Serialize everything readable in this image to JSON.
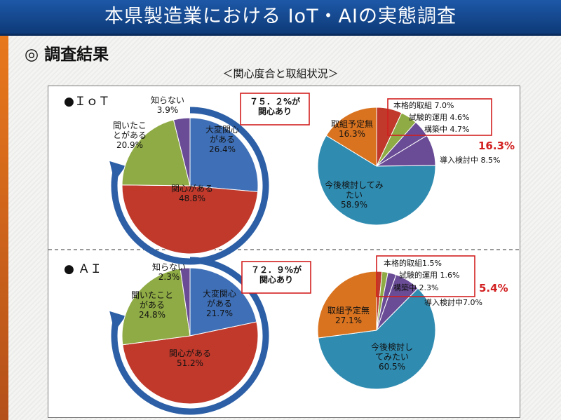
{
  "page": {
    "title": "本県製造業における IoT・AIの実態調査",
    "section_heading": "◎ 調査結果",
    "subtitle": "＜関心度合と取組状況＞"
  },
  "colors": {
    "blue": "#3f70b7",
    "red": "#c0392b",
    "green": "#8fab45",
    "purple": "#6a4c96",
    "teal": "#2f8bb0",
    "orange": "#d9731f",
    "arrow": "#2c5fa6",
    "highlight": "#d21f1f"
  },
  "chart_data": [
    {
      "type": "pie",
      "title": "●ＩｏＴ",
      "chart": "interest",
      "slices": [
        {
          "label": "大変関心\nがある",
          "value": 26.4,
          "display": "26.4%",
          "color": "blue"
        },
        {
          "label": "関心がある",
          "value": 48.8,
          "display": "48.8%",
          "color": "red"
        },
        {
          "label": "聞いたこ\nとがある",
          "value": 20.9,
          "display": "20.9%",
          "color": "green"
        },
        {
          "label": "知らない",
          "value": 3.9,
          "display": "3.9%",
          "color": "purple"
        }
      ],
      "callout": "７５．２%が\n関心あり"
    },
    {
      "type": "pie",
      "title": "",
      "chart": "initiative",
      "slices": [
        {
          "label": "本格的取組",
          "value": 7.0,
          "display": "7.0%",
          "color": "red"
        },
        {
          "label": "試験的運用",
          "value": 4.6,
          "display": "4.6%",
          "color": "green"
        },
        {
          "label": "構築中",
          "value": 4.7,
          "display": "4.7%",
          "color": "purple"
        },
        {
          "label": "導入検討中",
          "value": 8.5,
          "display": "8.5%",
          "color": "purple"
        },
        {
          "label": "今後検討してみ\nたい",
          "value": 58.9,
          "display": "58.9%",
          "color": "teal"
        },
        {
          "label": "取組予定無",
          "value": 16.3,
          "display": "16.3%",
          "color": "orange"
        }
      ],
      "highlight_total": "16.3%"
    },
    {
      "type": "pie",
      "title": "● ＡＩ",
      "chart": "interest",
      "slices": [
        {
          "label": "大変関心\nがある",
          "value": 21.7,
          "display": "21.7%",
          "color": "blue"
        },
        {
          "label": "関心がある",
          "value": 51.2,
          "display": "51.2%",
          "color": "red"
        },
        {
          "label": "聞いたこと\nがある",
          "value": 24.8,
          "display": "24.8%",
          "color": "green"
        },
        {
          "label": "知らない",
          "value": 2.3,
          "display": "2.3%",
          "color": "purple"
        }
      ],
      "callout": "７２．９%が\n関心あり"
    },
    {
      "type": "pie",
      "title": "",
      "chart": "initiative",
      "slices": [
        {
          "label": "本格的取組",
          "value": 1.5,
          "display": "1.5%",
          "color": "red"
        },
        {
          "label": "試験的運用",
          "value": 1.6,
          "display": "1.6%",
          "color": "green"
        },
        {
          "label": "構築中",
          "value": 2.3,
          "display": "2.3%",
          "color": "purple"
        },
        {
          "label": "導入検討中",
          "value": 7.0,
          "display": "7.0%",
          "color": "purple"
        },
        {
          "label": "今後検討し\nてみたい",
          "value": 60.5,
          "display": "60.5%",
          "color": "teal"
        },
        {
          "label": "取組予定無",
          "value": 27.1,
          "display": "27.1%",
          "color": "orange"
        }
      ],
      "highlight_total": "5.4%"
    }
  ]
}
